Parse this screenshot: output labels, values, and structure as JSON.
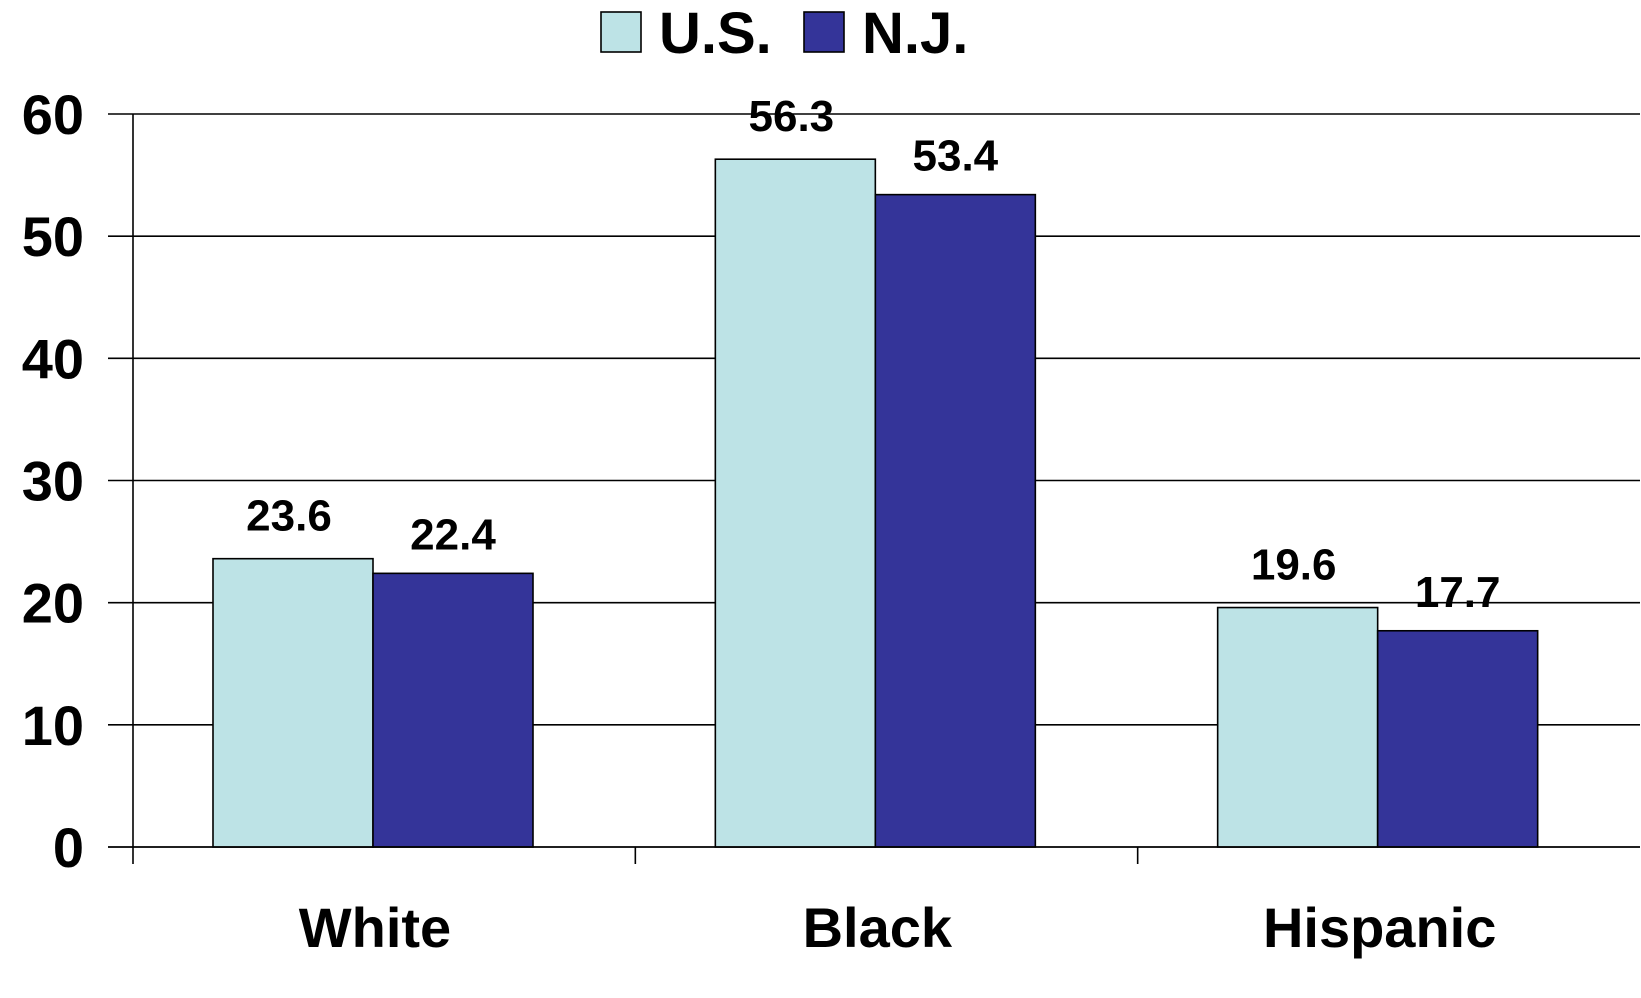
{
  "chart_data": {
    "type": "bar",
    "categories": [
      "White",
      "Black",
      "Hispanic"
    ],
    "series": [
      {
        "name": "U.S.",
        "values": [
          23.6,
          56.3,
          19.6
        ],
        "color": "#bde3e6"
      },
      {
        "name": "N.J.",
        "values": [
          22.4,
          53.4,
          17.7
        ],
        "color": "#343499"
      }
    ],
    "data_labels": [
      [
        "23.6",
        "56.3",
        "19.6"
      ],
      [
        "22.4",
        "53.4",
        "17.7"
      ]
    ],
    "yticks": [
      "0",
      "10",
      "20",
      "30",
      "40",
      "50",
      "60"
    ],
    "ylim": [
      0,
      60
    ],
    "grid": true,
    "legend_position": "top-center",
    "title": "",
    "xlabel": "",
    "ylabel": ""
  }
}
